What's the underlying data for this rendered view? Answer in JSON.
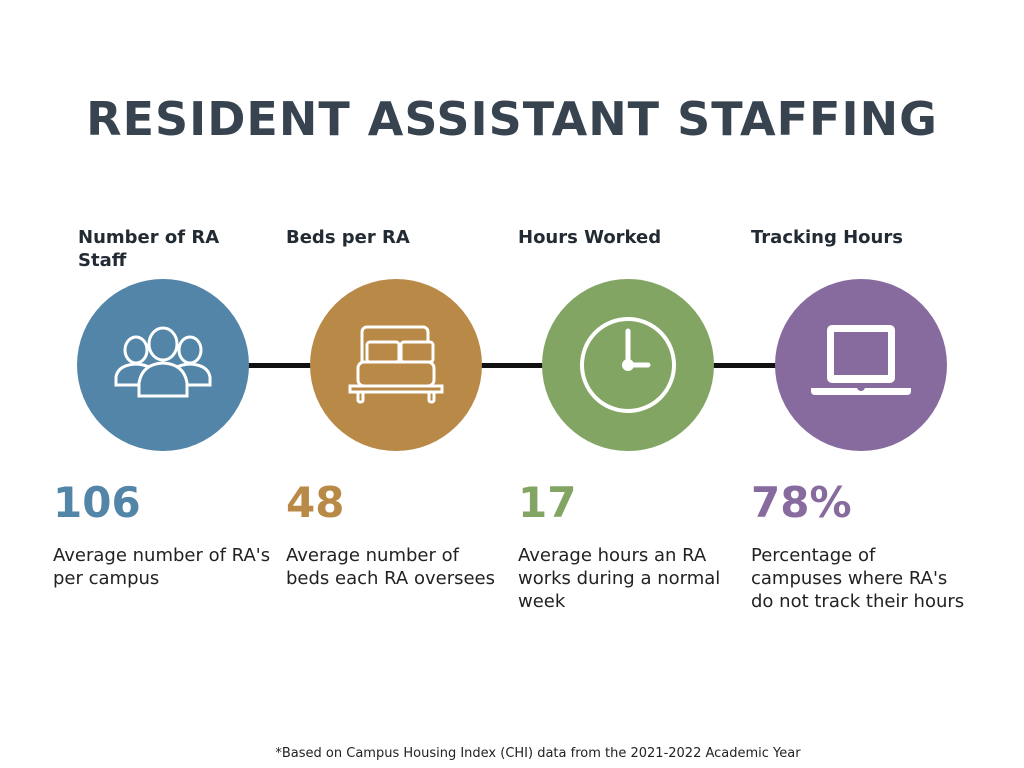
{
  "title": "RESIDENT ASSISTANT STAFFING",
  "colors": {
    "blue": "#5285a8",
    "gold": "#b88947",
    "green": "#82a564",
    "purple": "#876b9f",
    "title": "#37444f"
  },
  "stats": [
    {
      "heading": "Number of RA Staff",
      "icon": "people-group-icon",
      "value": "106",
      "description": "Average number of RA's per campus"
    },
    {
      "heading": "Beds per RA",
      "icon": "bed-icon",
      "value": "48",
      "description": "Average number of beds each RA oversees"
    },
    {
      "heading": "Hours Worked",
      "icon": "clock-icon",
      "value": "17",
      "description": "Average hours an RA works during a normal week"
    },
    {
      "heading": "Tracking Hours",
      "icon": "laptop-icon",
      "value": "78%",
      "description": "Percentage of campuses where RA's do not track their hours"
    }
  ],
  "footnote": "*Based on Campus Housing Index (CHI) data from the 2021-2022 Academic Year"
}
